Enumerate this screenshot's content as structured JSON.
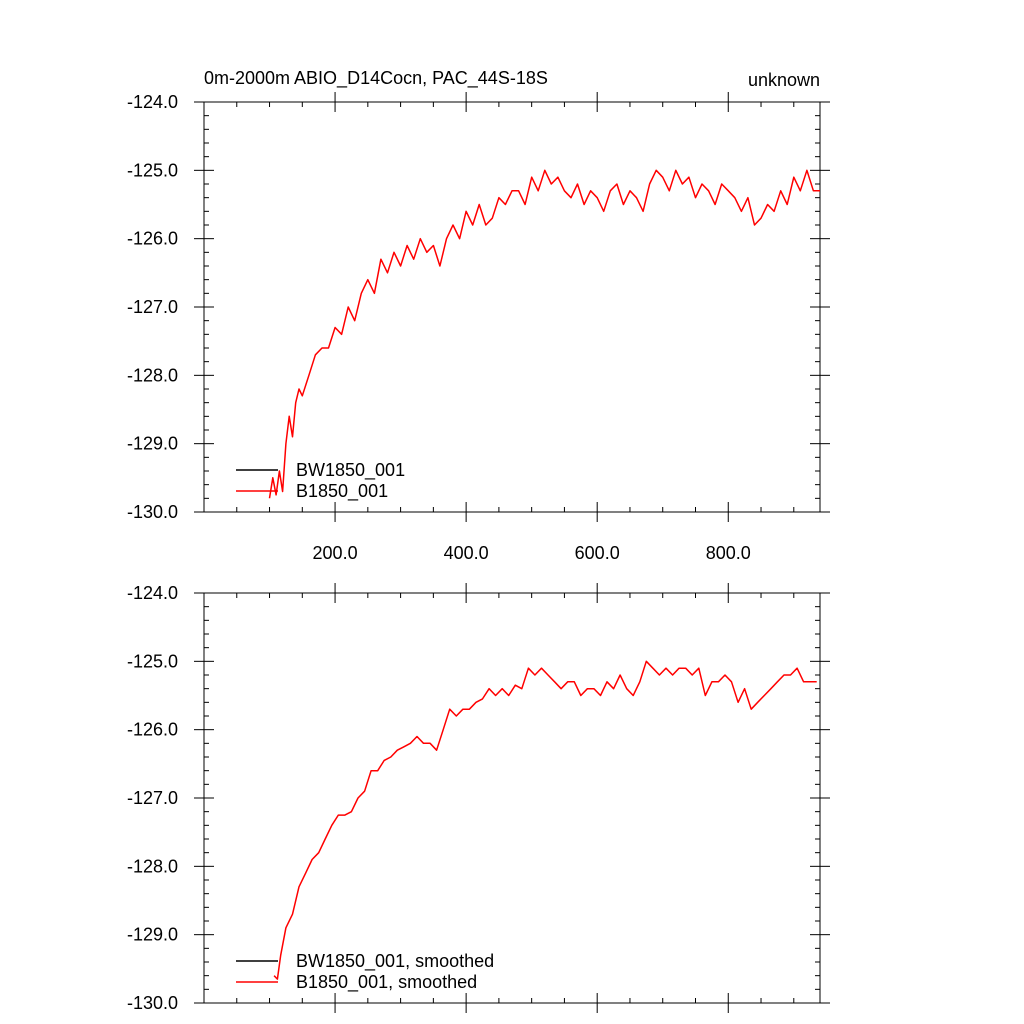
{
  "title_left": "0m-2000m ABIO_D14Cocn, PAC_44S-18S",
  "title_right": "unknown",
  "colors": {
    "BW1850_001": "#000000",
    "B1850_001": "#ff0000"
  },
  "chart_data": [
    {
      "type": "line",
      "xlim": [
        0,
        940
      ],
      "ylim": [
        -130,
        -124
      ],
      "x_tick_values": [
        200,
        400,
        600,
        800
      ],
      "x_tick_labels": [
        "200.0",
        "400.0",
        "600.0",
        "800.0"
      ],
      "y_tick_values": [
        -124,
        -125,
        -126,
        -127,
        -128,
        -129,
        -130
      ],
      "y_tick_labels": [
        "-124.0",
        "-125.0",
        "-126.0",
        "-127.0",
        "-128.0",
        "-129.0",
        "-130.0"
      ],
      "grid": false,
      "legend_position": "bottom-left",
      "legend": [
        "BW1850_001",
        "B1850_001"
      ],
      "series": [
        {
          "name": "BW1850_001",
          "color": "#000000",
          "x": [],
          "y": []
        },
        {
          "name": "B1850_001",
          "color": "#ff0000",
          "x": [
            100,
            105,
            110,
            115,
            120,
            125,
            130,
            135,
            140,
            145,
            150,
            160,
            170,
            180,
            190,
            200,
            210,
            220,
            230,
            240,
            250,
            260,
            270,
            280,
            290,
            300,
            310,
            320,
            330,
            340,
            350,
            360,
            370,
            380,
            390,
            400,
            410,
            420,
            430,
            440,
            450,
            460,
            470,
            480,
            490,
            500,
            510,
            520,
            530,
            540,
            550,
            560,
            570,
            580,
            590,
            600,
            610,
            620,
            630,
            640,
            650,
            660,
            670,
            680,
            690,
            700,
            710,
            720,
            730,
            740,
            750,
            760,
            770,
            780,
            790,
            800,
            810,
            820,
            830,
            840,
            850,
            860,
            870,
            880,
            890,
            900,
            910,
            920,
            930,
            940
          ],
          "y": [
            -129.8,
            -129.5,
            -129.75,
            -129.4,
            -129.7,
            -129.0,
            -128.6,
            -128.9,
            -128.4,
            -128.2,
            -128.3,
            -128.0,
            -127.7,
            -127.6,
            -127.6,
            -127.3,
            -127.4,
            -127.0,
            -127.2,
            -126.8,
            -126.6,
            -126.8,
            -126.3,
            -126.5,
            -126.2,
            -126.4,
            -126.1,
            -126.3,
            -126.0,
            -126.2,
            -126.1,
            -126.4,
            -126.0,
            -125.8,
            -126.0,
            -125.6,
            -125.8,
            -125.5,
            -125.8,
            -125.7,
            -125.4,
            -125.5,
            -125.3,
            -125.3,
            -125.5,
            -125.1,
            -125.3,
            -125.0,
            -125.2,
            -125.1,
            -125.3,
            -125.4,
            -125.2,
            -125.5,
            -125.3,
            -125.4,
            -125.6,
            -125.3,
            -125.2,
            -125.5,
            -125.3,
            -125.4,
            -125.6,
            -125.2,
            -125.0,
            -125.1,
            -125.3,
            -125.0,
            -125.2,
            -125.1,
            -125.4,
            -125.2,
            -125.3,
            -125.5,
            -125.2,
            -125.3,
            -125.4,
            -125.6,
            -125.4,
            -125.8,
            -125.7,
            -125.5,
            -125.6,
            -125.3,
            -125.5,
            -125.1,
            -125.3,
            -125.0,
            -125.3,
            -125.3
          ]
        }
      ]
    },
    {
      "type": "line",
      "xlim": [
        0,
        940
      ],
      "ylim": [
        -130,
        -124
      ],
      "x_tick_values": [
        200,
        400,
        600,
        800
      ],
      "x_tick_labels": [],
      "y_tick_values": [
        -124,
        -125,
        -126,
        -127,
        -128,
        -129,
        -130
      ],
      "y_tick_labels": [
        "-124.0",
        "-125.0",
        "-126.0",
        "-127.0",
        "-128.0",
        "-129.0",
        "-130.0"
      ],
      "grid": false,
      "legend_position": "bottom-left",
      "legend": [
        "BW1850_001, smoothed",
        "B1850_001, smoothed"
      ],
      "series": [
        {
          "name": "BW1850_001, smoothed",
          "color": "#000000",
          "x": [],
          "y": []
        },
        {
          "name": "B1850_001, smoothed",
          "color": "#ff0000",
          "x": [
            107,
            112,
            117,
            125,
            135,
            145,
            155,
            165,
            175,
            185,
            195,
            205,
            215,
            225,
            235,
            245,
            255,
            265,
            275,
            285,
            295,
            305,
            315,
            325,
            335,
            345,
            355,
            365,
            375,
            385,
            395,
            405,
            415,
            425,
            435,
            445,
            455,
            465,
            475,
            485,
            495,
            505,
            515,
            525,
            535,
            545,
            555,
            565,
            575,
            585,
            595,
            605,
            615,
            625,
            635,
            645,
            655,
            665,
            675,
            685,
            695,
            705,
            715,
            725,
            735,
            745,
            755,
            765,
            775,
            785,
            795,
            805,
            815,
            825,
            835,
            845,
            855,
            865,
            875,
            885,
            895,
            905,
            915,
            925,
            935
          ],
          "y": [
            -129.6,
            -129.65,
            -129.3,
            -128.9,
            -128.7,
            -128.3,
            -128.1,
            -127.9,
            -127.8,
            -127.6,
            -127.4,
            -127.25,
            -127.25,
            -127.2,
            -127.0,
            -126.9,
            -126.6,
            -126.6,
            -126.45,
            -126.4,
            -126.3,
            -126.25,
            -126.2,
            -126.1,
            -126.2,
            -126.2,
            -126.3,
            -126.0,
            -125.7,
            -125.8,
            -125.7,
            -125.7,
            -125.6,
            -125.55,
            -125.4,
            -125.5,
            -125.4,
            -125.5,
            -125.35,
            -125.4,
            -125.1,
            -125.2,
            -125.1,
            -125.2,
            -125.3,
            -125.4,
            -125.3,
            -125.3,
            -125.5,
            -125.4,
            -125.4,
            -125.5,
            -125.3,
            -125.4,
            -125.2,
            -125.4,
            -125.5,
            -125.3,
            -125.0,
            -125.1,
            -125.2,
            -125.1,
            -125.2,
            -125.1,
            -125.1,
            -125.2,
            -125.1,
            -125.5,
            -125.3,
            -125.3,
            -125.2,
            -125.3,
            -125.6,
            -125.4,
            -125.7,
            -125.6,
            -125.5,
            -125.4,
            -125.3,
            -125.2,
            -125.2,
            -125.1,
            -125.3,
            -125.3,
            -125.3
          ]
        }
      ]
    }
  ]
}
